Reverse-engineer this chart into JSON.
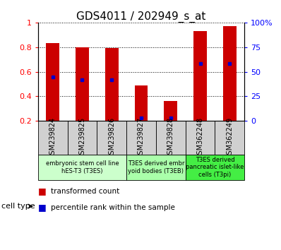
{
  "title": "GDS4011 / 202949_s_at",
  "samples": [
    "GSM239824",
    "GSM239825",
    "GSM239826",
    "GSM239827",
    "GSM239828",
    "GSM362248",
    "GSM362249"
  ],
  "transformed_count": [
    0.83,
    0.8,
    0.79,
    0.49,
    0.36,
    0.93,
    0.97
  ],
  "percentile_rank": [
    0.555,
    0.535,
    0.535,
    0.225,
    0.225,
    0.665,
    0.665
  ],
  "bar_bottom": 0.2,
  "bar_color": "#cc0000",
  "dot_color": "#0000cc",
  "ylim_left": [
    0.2,
    1.0
  ],
  "ylim_right": [
    0,
    100
  ],
  "yticks_left": [
    0.2,
    0.4,
    0.6,
    0.8,
    1.0
  ],
  "ytick_labels_left": [
    "0.2",
    "0.4",
    "0.6",
    "0.8",
    "1"
  ],
  "yticks_right": [
    0,
    25,
    50,
    75,
    100
  ],
  "ytick_labels_right": [
    "0",
    "25",
    "50",
    "75",
    "100%"
  ],
  "cell_groups": [
    {
      "label": "embryonic stem cell line\nhES-T3 (T3ES)",
      "start": 0,
      "end": 3,
      "color": "#ccffcc"
    },
    {
      "label": "T3ES derived embr\nyoid bodies (T3EB)",
      "start": 3,
      "end": 5,
      "color": "#aaffaa"
    },
    {
      "label": "T3ES derived\npancreatic islet-like\ncells (T3pi)",
      "start": 5,
      "end": 7,
      "color": "#44ee44"
    }
  ],
  "cell_type_label": "cell type",
  "legend_items": [
    {
      "color": "#cc0000",
      "label": "transformed count"
    },
    {
      "color": "#0000cc",
      "label": "percentile rank within the sample"
    }
  ],
  "bar_width": 0.45
}
